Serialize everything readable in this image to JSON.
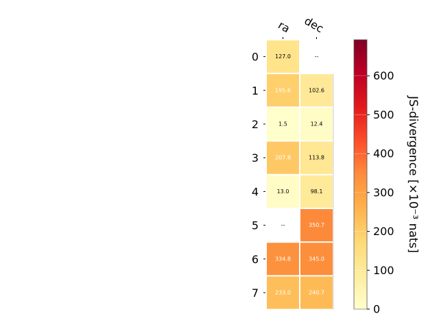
{
  "chart_data": {
    "type": "heatmap",
    "columns": [
      "ra",
      "dec"
    ],
    "rows": [
      "0",
      "1",
      "2",
      "3",
      "4",
      "5",
      "6",
      "7"
    ],
    "values": [
      [
        127.0,
        null
      ],
      [
        195.6,
        102.6
      ],
      [
        1.5,
        12.4
      ],
      [
        207.8,
        113.8
      ],
      [
        13.0,
        98.1
      ],
      [
        null,
        350.7
      ],
      [
        334.8,
        345.0
      ],
      [
        233.0,
        240.7
      ]
    ],
    "cell_labels": [
      [
        "127.0",
        "--"
      ],
      [
        "195.6",
        "102.6"
      ],
      [
        "1.5",
        "12.4"
      ],
      [
        "207.8",
        "113.8"
      ],
      [
        "13.0",
        "98.1"
      ],
      [
        "--",
        "350.7"
      ],
      [
        "334.8",
        "345.0"
      ],
      [
        "233.0",
        "240.7"
      ]
    ],
    "colorbar": {
      "label": "JS-divergence [×10⁻³ nats]",
      "min": 0,
      "max": 693,
      "ticks": [
        0,
        100,
        200,
        300,
        400,
        500,
        600
      ],
      "tick_labels": [
        "0",
        "100",
        "200",
        "300",
        "400",
        "500",
        "600"
      ],
      "colormap": "YlOrRd"
    },
    "colors": {
      "cmap_stops": [
        "#ffffcc",
        "#ffeda0",
        "#fed976",
        "#feb24c",
        "#fd8d3c",
        "#fc4e2a",
        "#e31a1c",
        "#bd0026",
        "#800026"
      ],
      "cell_border": "#ffffff",
      "text_light": "#ffffff",
      "text_dark": "#000000"
    }
  }
}
